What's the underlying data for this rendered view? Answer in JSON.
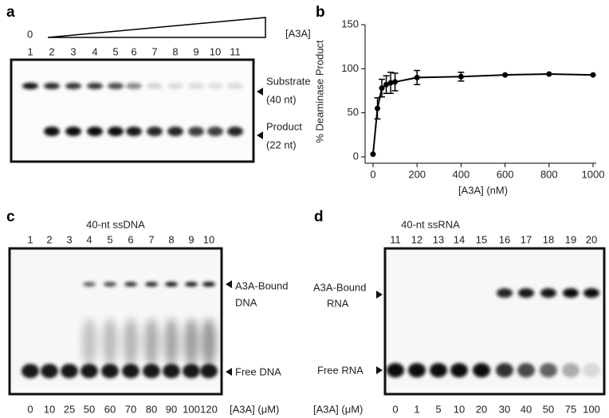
{
  "panel_a": {
    "label": "a",
    "zero_label": "0",
    "concentration_label": "[A3A]",
    "lanes": [
      "1",
      "2",
      "3",
      "4",
      "5",
      "6",
      "7",
      "8",
      "9",
      "10",
      "11"
    ],
    "substrate": [
      "Substrate",
      "(40 nt)"
    ],
    "product": [
      "Product",
      "(22 nt)"
    ]
  },
  "panel_b": {
    "label": "b"
  },
  "chart_data": {
    "type": "line",
    "y_label": "% Deaminase Product",
    "x_label": "[A3A] (nM)",
    "color": "#000000",
    "x": [
      0,
      20,
      40,
      60,
      80,
      100,
      200,
      400,
      600,
      800,
      1000
    ],
    "values": [
      3,
      55,
      78,
      82,
      84,
      85,
      90,
      91,
      93,
      94,
      93
    ],
    "errors": [
      0,
      12,
      10,
      10,
      12,
      10,
      8,
      5,
      0,
      0,
      0
    ],
    "xlim": [
      0,
      1000
    ],
    "xticks": [
      0,
      200,
      400,
      600,
      800,
      1000
    ],
    "ylim": [
      0,
      150
    ],
    "yticks": [
      0,
      50,
      100,
      150
    ]
  },
  "panel_c": {
    "label": "c",
    "title": "40-nt ssDNA",
    "lanes": [
      "1",
      "2",
      "3",
      "4",
      "5",
      "6",
      "7",
      "8",
      "9",
      "10"
    ],
    "concentrations": [
      "0",
      "10",
      "25",
      "50",
      "60",
      "70",
      "80",
      "90",
      "100",
      "120"
    ],
    "concentration_label": "[A3A] (μM)",
    "bound": [
      "A3A-Bound",
      "DNA"
    ],
    "free": "Free DNA"
  },
  "panel_d": {
    "label": "d",
    "title": "40-nt ssRNA",
    "lanes": [
      "11",
      "12",
      "13",
      "14",
      "15",
      "16",
      "17",
      "18",
      "19",
      "20"
    ],
    "concentrations": [
      "0",
      "1",
      "5",
      "10",
      "20",
      "30",
      "40",
      "50",
      "75",
      "100"
    ],
    "concentration_label": "[A3A] (μM)",
    "bound": [
      "A3A-Bound",
      "RNA"
    ],
    "free": "Free RNA"
  }
}
